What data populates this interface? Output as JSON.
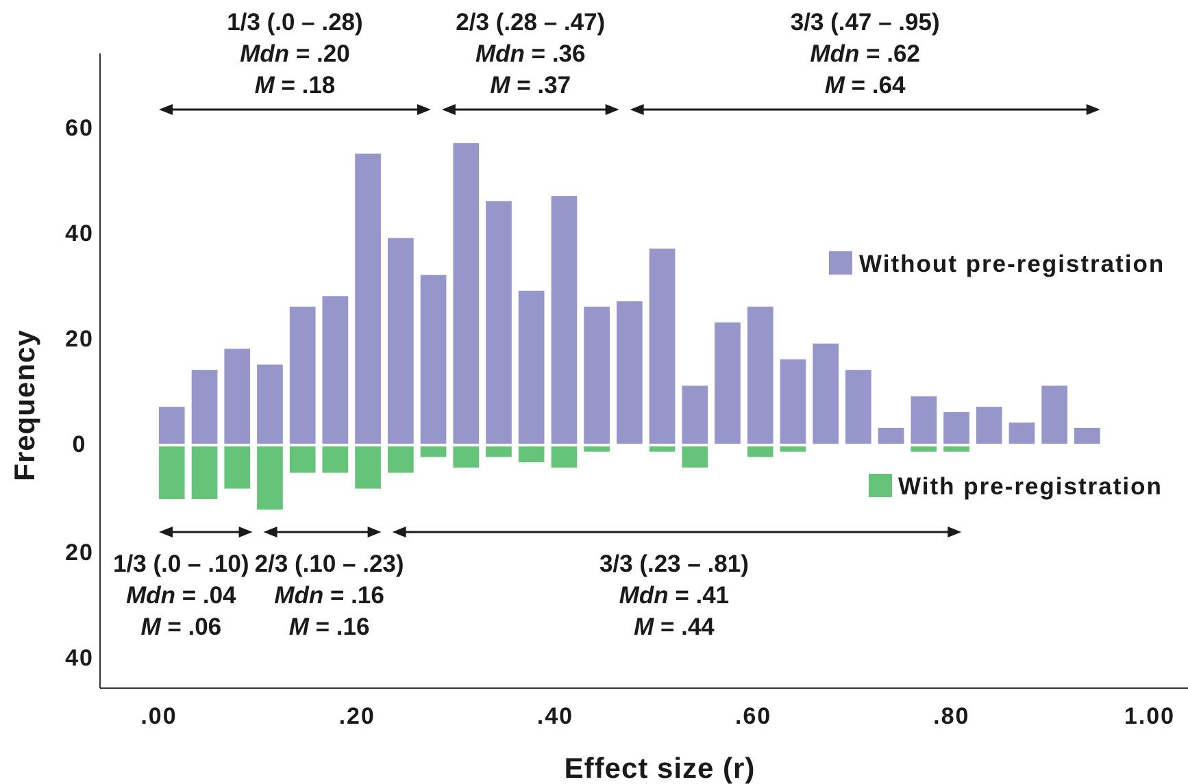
{
  "chart_data": {
    "type": "bar",
    "xlabel": "Effect size (r)",
    "ylabel": "Frequency",
    "xlim": [
      0,
      1.0
    ],
    "x_ticks": [
      ".00",
      ".20",
      ".40",
      ".60",
      ".80",
      "1.00"
    ],
    "y_ticks": [
      {
        "value": 60,
        "label": "60"
      },
      {
        "value": 40,
        "label": "40"
      },
      {
        "value": 20,
        "label": "20"
      },
      {
        "value": 0,
        "label": "0"
      },
      {
        "value": -20,
        "label": "20"
      },
      {
        "value": -40,
        "label": "40"
      }
    ],
    "ylim": [
      -46,
      73
    ],
    "bin_width": 0.033,
    "x": [
      0.013,
      0.046,
      0.079,
      0.112,
      0.145,
      0.178,
      0.211,
      0.244,
      0.277,
      0.31,
      0.343,
      0.376,
      0.409,
      0.442,
      0.475,
      0.508,
      0.541,
      0.574,
      0.607,
      0.64,
      0.673,
      0.706,
      0.739,
      0.772,
      0.805,
      0.838,
      0.871,
      0.904,
      0.937
    ],
    "series": [
      {
        "name": "Without pre-registration",
        "color": "#9696cb",
        "direction": "up",
        "values": [
          7,
          14,
          18,
          15,
          26,
          28,
          55,
          39,
          32,
          57,
          46,
          29,
          47,
          26,
          27,
          37,
          11,
          23,
          26,
          16,
          19,
          14,
          3,
          9,
          6,
          7,
          4,
          11,
          3
        ]
      },
      {
        "name": "With  pre-registration",
        "color": "#66c47a",
        "direction": "down",
        "values": [
          10,
          10,
          8,
          12,
          5,
          5,
          8,
          5,
          2,
          4,
          2,
          3,
          4,
          1,
          0,
          1,
          4,
          0,
          2,
          1,
          0,
          0,
          0,
          1,
          1,
          0,
          0,
          0,
          0
        ]
      }
    ],
    "legend_position": "right",
    "annotations_top": [
      {
        "range": [
          0.0,
          0.28
        ],
        "line1": "1/3 (.0 – .28)",
        "mdn": ".20",
        "m": ".18"
      },
      {
        "range": [
          0.28,
          0.47
        ],
        "line1": "2/3 (.28 – .47)",
        "mdn": ".36",
        "m": ".37"
      },
      {
        "range": [
          0.47,
          0.95
        ],
        "line1": "3/3 (.47 – .95)",
        "mdn": ".62",
        "m": ".64"
      }
    ],
    "annotations_bottom": [
      {
        "range": [
          0.0,
          0.1
        ],
        "line1": "1/3 (.0 – .10)",
        "mdn": ".04",
        "m": ".06"
      },
      {
        "range": [
          0.1,
          0.23
        ],
        "line1": "2/3 (.10 – .23)",
        "mdn": ".16",
        "m": ".16"
      },
      {
        "range": [
          0.23,
          0.81
        ],
        "line1": "3/3 (.23 – .81)",
        "mdn": ".41",
        "m": ".44"
      }
    ],
    "mdn_label": "Mdn",
    "m_label": "M"
  }
}
